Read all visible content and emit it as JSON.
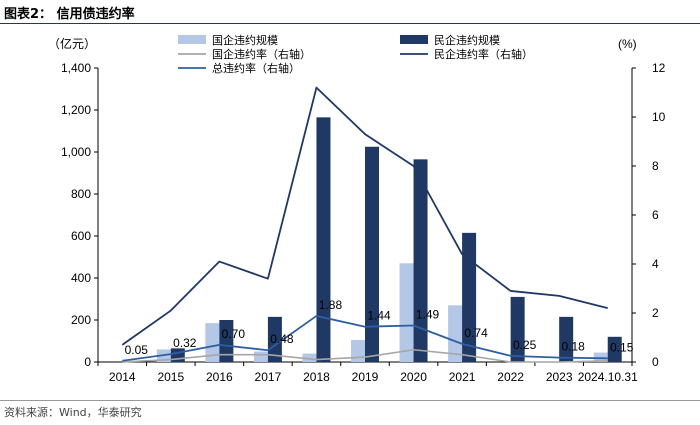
{
  "page": {
    "title": "图表2： 信用债违约率",
    "source": "资料来源：Wind，华泰研究"
  },
  "colors": {
    "soe_bar": "#b4c7e7",
    "private_bar": "#1f3864",
    "soe_line": "#a6a6a6",
    "private_line": "#1f3864",
    "total_line": "#2e5fa3"
  },
  "chart_data": {
    "type": "bar",
    "categories": [
      "2014",
      "2015",
      "2016",
      "2017",
      "2018",
      "2019",
      "2020",
      "2021",
      "2022",
      "2023",
      "2024.10.31"
    ],
    "ylabel": "（亿元）",
    "y2label": "(%)",
    "ylim": [
      0,
      1400
    ],
    "y2lim": [
      0,
      12
    ],
    "yticks": [
      "0",
      "200",
      "400",
      "600",
      "800",
      "1,000",
      "1,200",
      "1,400"
    ],
    "y2ticks": [
      "0",
      "2",
      "4",
      "6",
      "8",
      "10",
      "12"
    ],
    "legend_position": "top-center",
    "series": [
      {
        "name": "国企违约规模",
        "kind": "bar",
        "axis": "left",
        "values": [
          0,
          60,
          185,
          50,
          40,
          105,
          470,
          270,
          0,
          0,
          45
        ]
      },
      {
        "name": "民企违约规模",
        "kind": "bar",
        "axis": "left",
        "values": [
          5,
          65,
          200,
          215,
          1165,
          1025,
          965,
          615,
          310,
          215,
          120
        ]
      },
      {
        "name": "国企违约率（右轴）",
        "kind": "line",
        "axis": "right",
        "values": [
          0.0,
          0.1,
          0.3,
          0.3,
          0.1,
          0.2,
          0.5,
          0.3,
          0.0,
          0.0,
          0.05
        ]
      },
      {
        "name": "民企违约率（右轴）",
        "kind": "line",
        "axis": "right",
        "values": [
          0.7,
          2.1,
          4.1,
          3.4,
          11.2,
          9.3,
          8.0,
          4.4,
          2.9,
          2.7,
          2.2
        ]
      },
      {
        "name": "总违约率（右轴）",
        "kind": "line",
        "axis": "right",
        "values": [
          0.05,
          0.32,
          0.7,
          0.48,
          1.88,
          1.44,
          1.49,
          0.74,
          0.25,
          0.18,
          0.15
        ],
        "labels": [
          "0.05",
          "0.32",
          "0.70",
          "0.48",
          "1.88",
          "1.44",
          "1.49",
          "0.74",
          "0.25",
          "0.18",
          "0.15"
        ]
      }
    ]
  }
}
